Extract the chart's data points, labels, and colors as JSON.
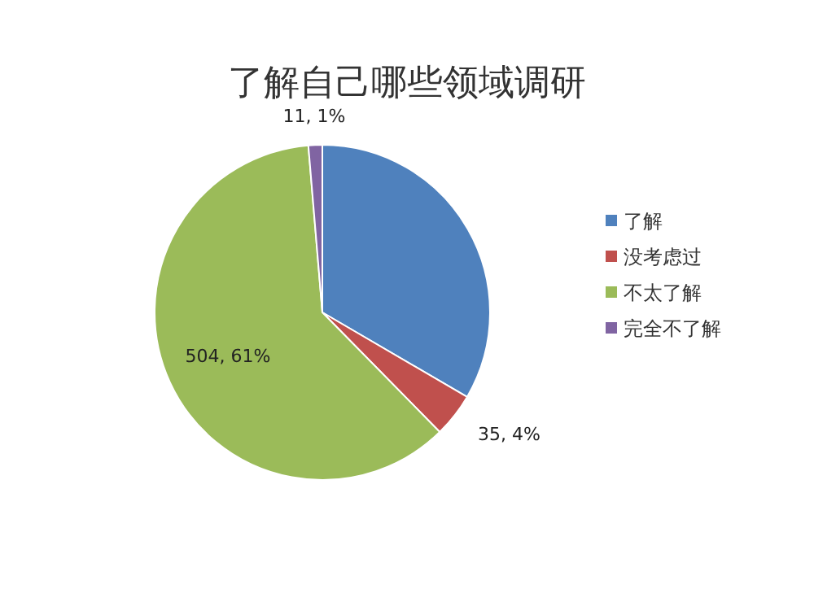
{
  "chart_data": {
    "type": "pie",
    "title": "了解自己哪些领域调研",
    "categories": [
      "了解",
      "没考虑过",
      "不太了解",
      "完全不了解"
    ],
    "values": [
      276,
      35,
      504,
      11
    ],
    "colors": [
      "#4f81bd",
      "#c0504d",
      "#9bbb59",
      "#8064a2"
    ],
    "value_labels": [
      null,
      "35, 4%",
      "504, 61%",
      "11, 1%"
    ],
    "legend": "right"
  }
}
